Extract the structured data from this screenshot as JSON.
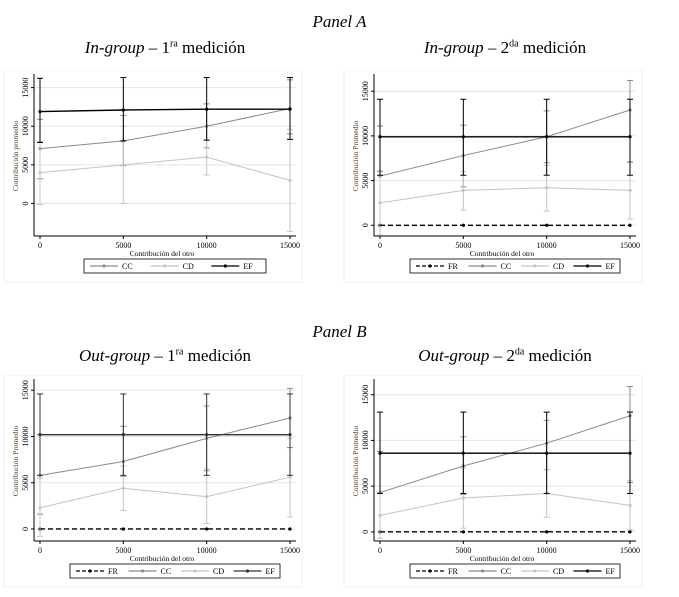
{
  "panels": [
    {
      "label": "Panel A"
    },
    {
      "label": "Panel B"
    }
  ],
  "chart_data": [
    {
      "type": "line",
      "panel": "Panel A",
      "title_italic": "In-group",
      "title_dash": " – 1",
      "title_sup": "ra",
      "title_rest": " medición",
      "xlabel": "Contribución del otro",
      "ylabel": "Contribución promedio",
      "x": [
        0,
        5000,
        10000,
        15000
      ],
      "ylim": [
        -4200,
        16500
      ],
      "yticks": [
        0,
        5000,
        10000,
        15000
      ],
      "xticks": [
        0,
        5000,
        10000,
        15000
      ],
      "legend": [
        "CC",
        "CD",
        "EF"
      ],
      "series": [
        {
          "name": "CC",
          "color": "#8a8a8a",
          "dash": false,
          "values": [
            7100,
            8100,
            10000,
            12300
          ],
          "lo": [
            3200,
            4900,
            7200,
            9000
          ],
          "hi": [
            10900,
            11400,
            12900,
            16000
          ]
        },
        {
          "name": "CD",
          "color": "#c4c4c4",
          "dash": false,
          "values": [
            4000,
            5000,
            6000,
            3000
          ],
          "lo": [
            -100,
            0,
            3700,
            -3600
          ],
          "hi": [
            8000,
            10000,
            8200,
            9600
          ]
        },
        {
          "name": "EF",
          "color": "#000000",
          "dash": false,
          "values": [
            11900,
            12100,
            12200,
            12200
          ],
          "lo": [
            7900,
            8100,
            8200,
            8300
          ],
          "hi": [
            16200,
            16300,
            16300,
            16300
          ]
        }
      ]
    },
    {
      "type": "line",
      "panel": "Panel A",
      "title_italic": "In-group",
      "title_dash": " – 2",
      "title_sup": "da",
      "title_rest": " medición",
      "xlabel": "Contribución del otro",
      "ylabel": "Contribución Promedio",
      "x": [
        0,
        5000,
        10000,
        15000
      ],
      "ylim": [
        -1200,
        16700
      ],
      "yticks": [
        0,
        5000,
        10000,
        15000
      ],
      "xticks": [
        0,
        5000,
        10000,
        15000
      ],
      "legend": [
        "FR",
        "CC",
        "CD",
        "EF"
      ],
      "series": [
        {
          "name": "FR",
          "color": "#000000",
          "dash": true,
          "values": [
            0,
            0,
            0,
            0
          ],
          "lo": null,
          "hi": null
        },
        {
          "name": "CC",
          "color": "#8a8a8a",
          "dash": false,
          "values": [
            5500,
            7800,
            9900,
            12900
          ],
          "lo": [
            6000,
            4300,
            7000,
            7100
          ],
          "hi": [
            11100,
            11200,
            12800,
            16200
          ]
        },
        {
          "name": "CD",
          "color": "#c4c4c4",
          "dash": false,
          "values": [
            2500,
            3900,
            4200,
            3900
          ],
          "lo": [
            -1100,
            1700,
            1600,
            700
          ],
          "hi": [
            6100,
            6000,
            6700,
            7000
          ]
        },
        {
          "name": "EF",
          "color": "#000000",
          "dash": false,
          "values": [
            9900,
            9900,
            9900,
            9900
          ],
          "lo": [
            5600,
            5600,
            5600,
            5600
          ],
          "hi": [
            14100,
            14100,
            14100,
            14100
          ]
        }
      ]
    },
    {
      "type": "line",
      "panel": "Panel B",
      "title_italic": "Out-group",
      "title_dash": " – 1",
      "title_sup": "ra",
      "title_rest": " medición",
      "xlabel": "Contribución del otro",
      "ylabel": "Contribución Promedio",
      "x": [
        0,
        5000,
        10000,
        15000
      ],
      "ylim": [
        -1300,
        16000
      ],
      "yticks": [
        0,
        5000,
        10000,
        15000
      ],
      "xticks": [
        0,
        5000,
        10000,
        15000
      ],
      "legend": [
        "FR",
        "CC",
        "CD",
        "EF"
      ],
      "series": [
        {
          "name": "FR",
          "color": "#000000",
          "dash": true,
          "values": [
            0,
            0,
            0,
            0
          ],
          "lo": null,
          "hi": null
        },
        {
          "name": "CC",
          "color": "#8a8a8a",
          "dash": false,
          "values": [
            5800,
            7300,
            9800,
            12000
          ],
          "lo": [
            1600,
            5700,
            6300,
            8800
          ],
          "hi": [
            10200,
            11100,
            13300,
            15200
          ]
        },
        {
          "name": "CD",
          "color": "#c4c4c4",
          "dash": false,
          "values": [
            2300,
            4400,
            3500,
            5600
          ],
          "lo": [
            -800,
            2000,
            600,
            1300
          ],
          "hi": [
            5500,
            6800,
            6500,
            9800
          ]
        },
        {
          "name": "EF",
          "color": "#333333",
          "dash": false,
          "values": [
            10200,
            10200,
            10200,
            10200
          ],
          "lo": [
            5800,
            5800,
            5800,
            5800
          ],
          "hi": [
            14600,
            14600,
            14600,
            14600
          ]
        }
      ]
    },
    {
      "type": "line",
      "panel": "Panel B",
      "title_italic": "Out-group",
      "title_dash": " – 2",
      "title_sup": "da",
      "title_rest": " medición",
      "xlabel": "Contribución del otro",
      "ylabel": "Contribución Promedio",
      "x": [
        0,
        5000,
        10000,
        15000
      ],
      "ylim": [
        -1000,
        16500
      ],
      "yticks": [
        0,
        5000,
        10000,
        15000
      ],
      "xticks": [
        0,
        5000,
        10000,
        15000
      ],
      "legend": [
        "FR",
        "CC",
        "CD",
        "EF"
      ],
      "series": [
        {
          "name": "FR",
          "color": "#000000",
          "dash": true,
          "values": [
            0,
            0,
            0,
            0
          ],
          "lo": null,
          "hi": null
        },
        {
          "name": "CC",
          "color": "#8a8a8a",
          "dash": false,
          "values": [
            4300,
            7200,
            9700,
            12700
          ],
          "lo": [
            4300,
            4100,
            6800,
            5400
          ],
          "hi": [
            8800,
            10400,
            12200,
            15900
          ]
        },
        {
          "name": "CD",
          "color": "#c4c4c4",
          "dash": false,
          "values": [
            1800,
            3700,
            4200,
            2900
          ],
          "lo": [
            -700,
            400,
            1600,
            200
          ],
          "hi": [
            4300,
            7000,
            6800,
            5600
          ]
        },
        {
          "name": "EF",
          "color": "#000000",
          "dash": false,
          "values": [
            8600,
            8600,
            8600,
            8600
          ],
          "lo": [
            4200,
            4200,
            4200,
            4200
          ],
          "hi": [
            13100,
            13100,
            13100,
            13100
          ]
        }
      ]
    }
  ]
}
